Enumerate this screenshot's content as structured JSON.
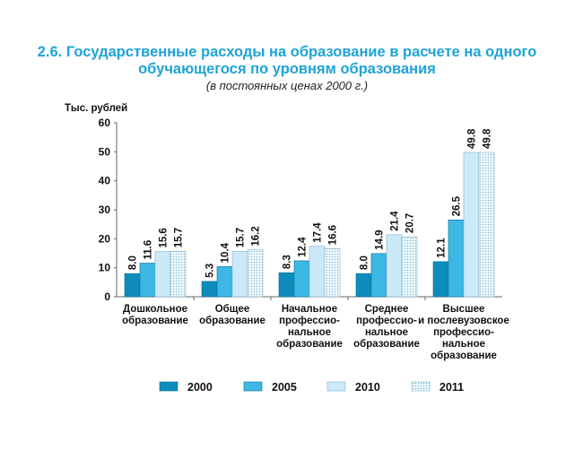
{
  "chart_data": {
    "type": "bar",
    "title_line1": "2.6. Государственные расходы на образование в расчете на одного",
    "title_line2": "обучающегося по уровням образования",
    "subtitle": "(в постоянных ценах 2000 г.)",
    "ylabel": "Тыс. рублей",
    "ylim": [
      0,
      60
    ],
    "yticks": [
      "0",
      "10",
      "20",
      "30",
      "40",
      "50",
      "60"
    ],
    "categories": [
      [
        "Дошкольное",
        "образование"
      ],
      [
        "Общее",
        "образование"
      ],
      [
        "Начальное",
        "профессио-",
        "нальное",
        "образование"
      ],
      [
        "Среднее",
        "профессио-",
        "нальное",
        "образование"
      ],
      [
        "Высшее",
        "и послевузовское",
        "профессио-",
        "нальное",
        "образование"
      ]
    ],
    "series": [
      {
        "name": "2000",
        "color": "#0d8cbc",
        "values": [
          8.0,
          5.3,
          8.3,
          8.0,
          12.1
        ],
        "labels": [
          "8.0",
          "5.3",
          "8.3",
          "8.0",
          "12.1"
        ]
      },
      {
        "name": "2005",
        "color": "#3db7e4",
        "values": [
          11.6,
          10.4,
          12.4,
          14.9,
          26.5
        ],
        "labels": [
          "11.6",
          "10.4",
          "12.4",
          "14.9",
          "26.5"
        ]
      },
      {
        "name": "2010",
        "color": "#cbe9f8",
        "values": [
          15.6,
          15.7,
          17.4,
          21.4,
          49.8
        ],
        "labels": [
          "15.6",
          "15.7",
          "17.4",
          "21.4",
          "49.8"
        ]
      },
      {
        "name": "2011",
        "color": "dotted",
        "values": [
          15.7,
          16.2,
          16.6,
          20.7,
          49.8
        ],
        "labels": [
          "15.7",
          "16.2",
          "16.6",
          "20.7",
          "49.8"
        ]
      }
    ],
    "legend_position": "bottom"
  }
}
